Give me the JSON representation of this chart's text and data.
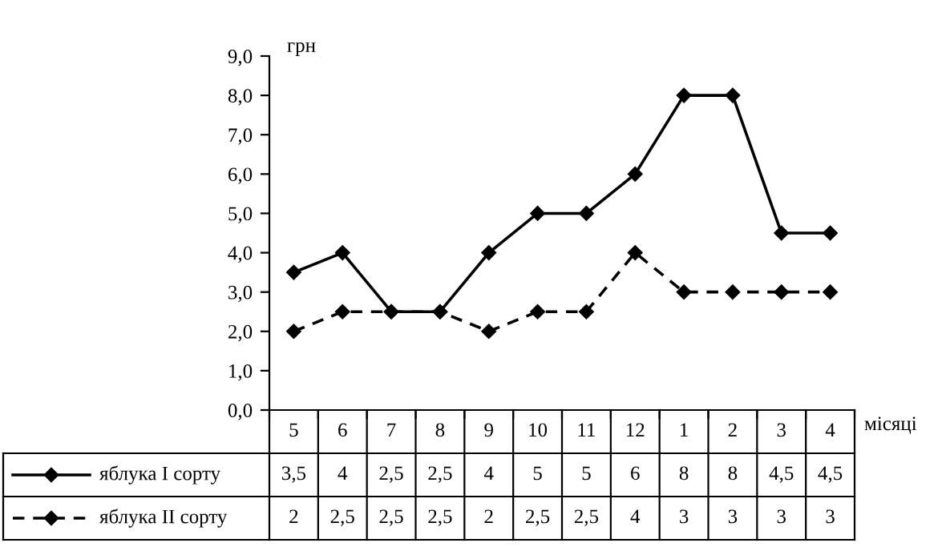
{
  "chart_data": {
    "type": "line",
    "ylabel": "грн",
    "xlabel": "місяці",
    "categories": [
      "5",
      "6",
      "7",
      "8",
      "9",
      "10",
      "11",
      "12",
      "1",
      "2",
      "3",
      "4"
    ],
    "series": [
      {
        "name": "яблука I сорту",
        "color": "#000000",
        "line_style": "solid",
        "values": [
          3.5,
          4,
          2.5,
          2.5,
          4,
          5,
          5,
          6,
          8,
          8,
          4.5,
          4.5
        ],
        "value_labels": [
          "3,5",
          "4",
          "2,5",
          "2,5",
          "4",
          "5",
          "5",
          "6",
          "8",
          "8",
          "4,5",
          "4,5"
        ]
      },
      {
        "name": "яблука II сорту",
        "color": "#000000",
        "line_style": "dashed",
        "values": [
          2,
          2.5,
          2.5,
          2.5,
          2,
          2.5,
          2.5,
          4,
          3,
          3,
          3,
          3
        ],
        "value_labels": [
          "2",
          "2,5",
          "2,5",
          "2,5",
          "2",
          "2,5",
          "2,5",
          "4",
          "3",
          "3",
          "3",
          "3"
        ]
      }
    ],
    "ylim": [
      0,
      9
    ],
    "yticks": [
      {
        "value": 0,
        "label": "0,0"
      },
      {
        "value": 1,
        "label": "1,0"
      },
      {
        "value": 2,
        "label": "2,0"
      },
      {
        "value": 3,
        "label": "3,0"
      },
      {
        "value": 4,
        "label": "4,0"
      },
      {
        "value": 5,
        "label": "5,0"
      },
      {
        "value": 6,
        "label": "6,0"
      },
      {
        "value": 7,
        "label": "7,0"
      },
      {
        "value": 8,
        "label": "8,0"
      },
      {
        "value": 9,
        "label": "9,0"
      }
    ],
    "marker": "diamond",
    "grid": false,
    "legend": "bottom left"
  }
}
